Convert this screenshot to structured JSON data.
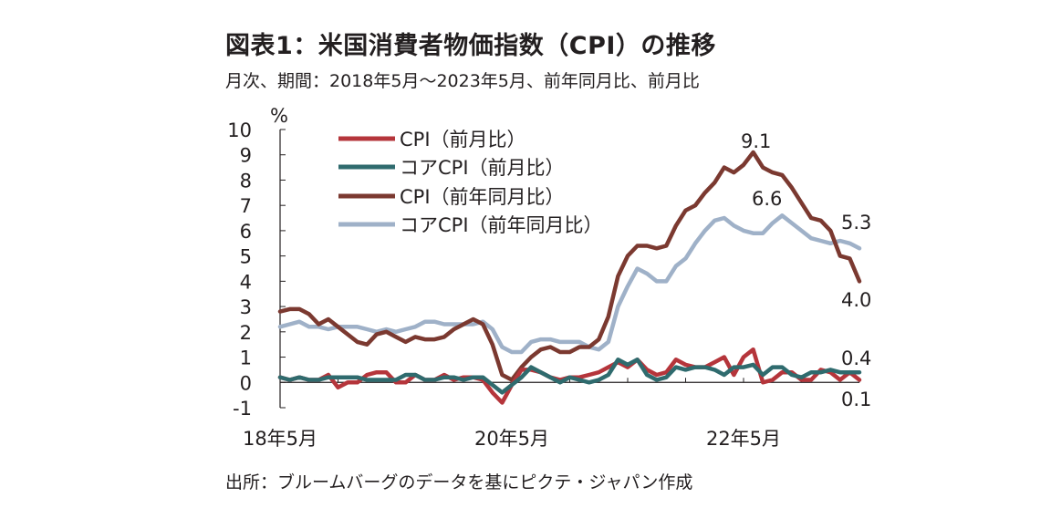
{
  "title": "図表1：米国消費者物価指数（CPI）の推移",
  "subtitle": "月次、期間：2018年5月～2023年5月、前年同月比、前月比",
  "source": "出所：ブルームバーグのデータを基にピクテ・ジャパン作成",
  "chart_data": {
    "type": "line",
    "ylabel": "%",
    "ylim": [
      -1,
      10
    ],
    "yticks": [
      "10",
      "9",
      "8",
      "7",
      "6",
      "5",
      "4",
      "3",
      "2",
      "1",
      "0",
      "-1"
    ],
    "xtick_labels": [
      "18年5月",
      "20年5月",
      "22年5月"
    ],
    "x": [
      "2018-05",
      "2018-06",
      "2018-07",
      "2018-08",
      "2018-09",
      "2018-10",
      "2018-11",
      "2018-12",
      "2019-01",
      "2019-02",
      "2019-03",
      "2019-04",
      "2019-05",
      "2019-06",
      "2019-07",
      "2019-08",
      "2019-09",
      "2019-10",
      "2019-11",
      "2019-12",
      "2020-01",
      "2020-02",
      "2020-03",
      "2020-04",
      "2020-05",
      "2020-06",
      "2020-07",
      "2020-08",
      "2020-09",
      "2020-10",
      "2020-11",
      "2020-12",
      "2021-01",
      "2021-02",
      "2021-03",
      "2021-04",
      "2021-05",
      "2021-06",
      "2021-07",
      "2021-08",
      "2021-09",
      "2021-10",
      "2021-11",
      "2021-12",
      "2022-01",
      "2022-02",
      "2022-03",
      "2022-04",
      "2022-05",
      "2022-06",
      "2022-07",
      "2022-08",
      "2022-09",
      "2022-10",
      "2022-11",
      "2022-12",
      "2023-01",
      "2023-02",
      "2023-03",
      "2023-04",
      "2023-05"
    ],
    "series": [
      {
        "name": "CPI（前月比）",
        "color": "#b5353b",
        "values": [
          0.2,
          0.1,
          0.2,
          0.1,
          0.1,
          0.3,
          -0.2,
          0.0,
          0.0,
          0.3,
          0.4,
          0.4,
          0.0,
          0.0,
          0.3,
          0.1,
          0.1,
          0.3,
          0.1,
          0.2,
          0.2,
          0.1,
          -0.4,
          -0.8,
          -0.1,
          0.5,
          0.5,
          0.4,
          0.2,
          0.1,
          0.2,
          0.2,
          0.3,
          0.4,
          0.6,
          0.8,
          0.6,
          0.9,
          0.5,
          0.3,
          0.4,
          0.9,
          0.7,
          0.6,
          0.6,
          0.8,
          1.0,
          0.3,
          1.0,
          1.3,
          0.0,
          0.1,
          0.4,
          0.4,
          0.1,
          0.1,
          0.5,
          0.4,
          0.1,
          0.4,
          0.1
        ]
      },
      {
        "name": "コアCPI（前月比）",
        "color": "#2f6b6e",
        "values": [
          0.2,
          0.1,
          0.2,
          0.1,
          0.1,
          0.2,
          0.2,
          0.2,
          0.2,
          0.1,
          0.1,
          0.1,
          0.1,
          0.3,
          0.3,
          0.1,
          0.1,
          0.2,
          0.2,
          0.1,
          0.2,
          0.2,
          -0.1,
          -0.4,
          -0.1,
          0.2,
          0.6,
          0.4,
          0.2,
          0.0,
          0.2,
          0.1,
          0.0,
          0.1,
          0.3,
          0.9,
          0.7,
          0.9,
          0.3,
          0.1,
          0.2,
          0.6,
          0.5,
          0.6,
          0.6,
          0.5,
          0.3,
          0.6,
          0.6,
          0.7,
          0.3,
          0.6,
          0.6,
          0.3,
          0.2,
          0.4,
          0.4,
          0.5,
          0.4,
          0.4,
          0.4
        ]
      },
      {
        "name": "CPI（前年同月比）",
        "color": "#7b3930",
        "values": [
          2.8,
          2.9,
          2.9,
          2.7,
          2.3,
          2.5,
          2.2,
          1.9,
          1.6,
          1.5,
          1.9,
          2.0,
          1.8,
          1.6,
          1.8,
          1.7,
          1.7,
          1.8,
          2.1,
          2.3,
          2.5,
          2.3,
          1.5,
          0.3,
          0.1,
          0.6,
          1.0,
          1.3,
          1.4,
          1.2,
          1.2,
          1.4,
          1.4,
          1.7,
          2.6,
          4.2,
          5.0,
          5.4,
          5.4,
          5.3,
          5.4,
          6.2,
          6.8,
          7.0,
          7.5,
          7.9,
          8.5,
          8.3,
          8.6,
          9.1,
          8.5,
          8.3,
          8.2,
          7.7,
          7.1,
          6.5,
          6.4,
          6.0,
          5.0,
          4.9,
          4.0
        ]
      },
      {
        "name": "コアCPI（前年同月比）",
        "color": "#9fb1c8",
        "values": [
          2.2,
          2.3,
          2.4,
          2.2,
          2.2,
          2.1,
          2.2,
          2.2,
          2.2,
          2.1,
          2.0,
          2.1,
          2.0,
          2.1,
          2.2,
          2.4,
          2.4,
          2.3,
          2.3,
          2.3,
          2.3,
          2.4,
          2.1,
          1.4,
          1.2,
          1.2,
          1.6,
          1.7,
          1.7,
          1.6,
          1.6,
          1.6,
          1.4,
          1.3,
          1.6,
          3.0,
          3.8,
          4.5,
          4.3,
          4.0,
          4.0,
          4.6,
          4.9,
          5.5,
          6.0,
          6.4,
          6.5,
          6.2,
          6.0,
          5.9,
          5.9,
          6.3,
          6.6,
          6.3,
          6.0,
          5.7,
          5.6,
          5.5,
          5.6,
          5.5,
          5.3
        ]
      }
    ],
    "annotations": [
      "9.1",
      "6.6",
      "5.3",
      "4.0",
      "0.4",
      "0.1"
    ]
  }
}
